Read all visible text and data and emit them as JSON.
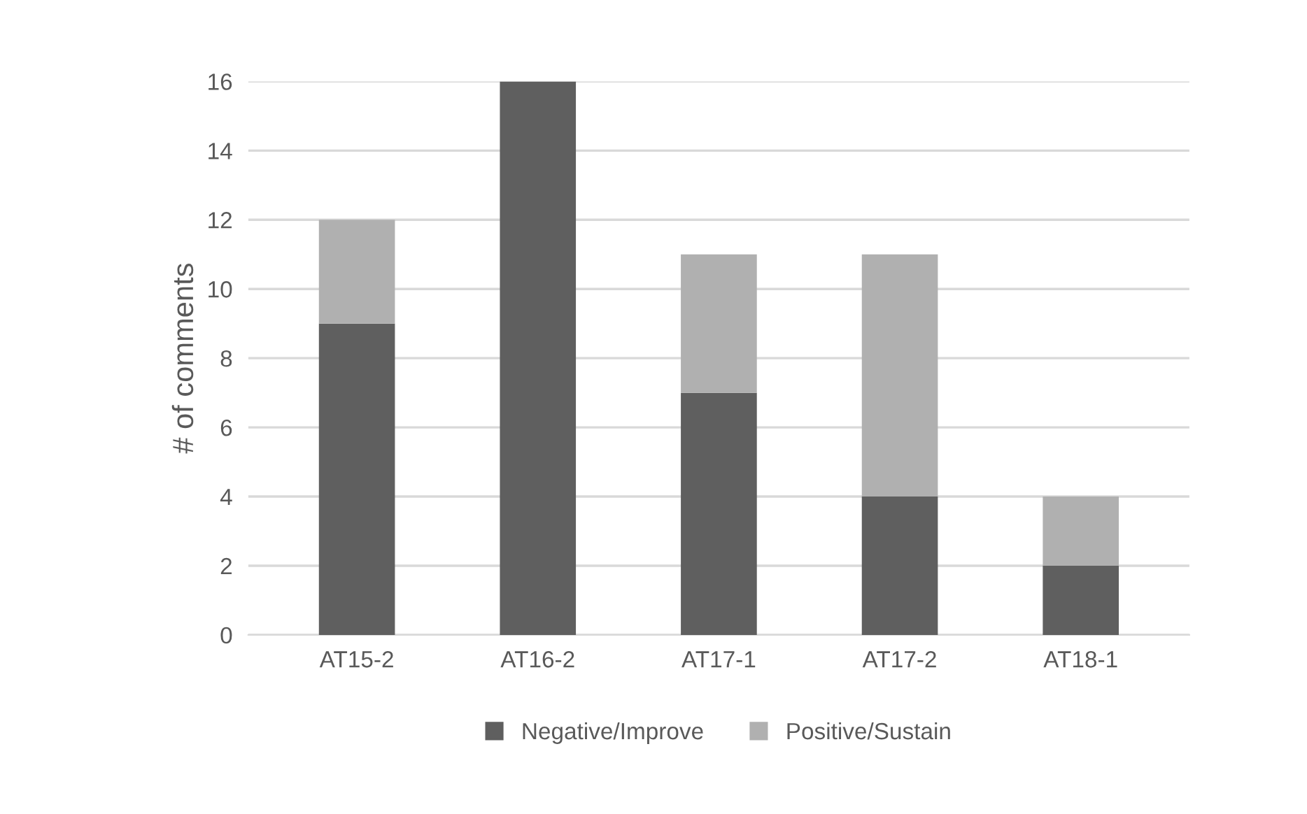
{
  "chart_data": {
    "type": "bar",
    "stacked": true,
    "ylabel": "# of comments",
    "categories": [
      "AT15-2",
      "AT16-2",
      "AT17-1",
      "AT17-2",
      "AT18-1"
    ],
    "series": [
      {
        "name": "Negative/Improve",
        "color": "#5f5f5f",
        "values": [
          9,
          16,
          7,
          4,
          2
        ]
      },
      {
        "name": "Positive/Sustain",
        "color": "#b0b0b0",
        "values": [
          3,
          0,
          4,
          7,
          2
        ]
      }
    ],
    "ylim": [
      0,
      16
    ],
    "yticks": [
      0,
      2,
      4,
      6,
      8,
      10,
      12,
      14,
      16
    ],
    "grid": "y",
    "legend": "bottom"
  }
}
